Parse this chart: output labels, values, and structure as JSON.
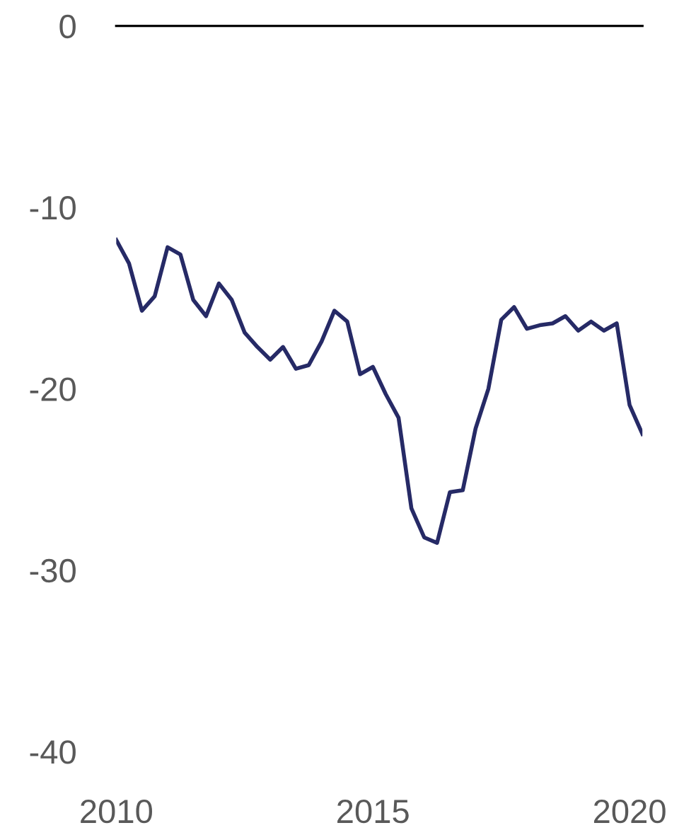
{
  "chart_data": {
    "type": "line",
    "x": [
      2010,
      2010.25,
      2010.5,
      2010.75,
      2011,
      2011.25,
      2011.5,
      2011.75,
      2012,
      2012.25,
      2012.5,
      2012.75,
      2013,
      2013.25,
      2013.5,
      2013.75,
      2014,
      2014.25,
      2014.5,
      2014.75,
      2015,
      2015.25,
      2015.5,
      2015.75,
      2016,
      2016.25,
      2016.5,
      2016.75,
      2017,
      2017.25,
      2017.5,
      2017.75,
      2018,
      2018.25,
      2018.5,
      2018.75,
      2019,
      2019.25,
      2019.5,
      2019.75,
      2020,
      2020.25
    ],
    "series": [
      {
        "color": "#262a66",
        "values": [
          -11.8,
          -13.1,
          -15.7,
          -14.9,
          -12.2,
          -12.6,
          -15.1,
          -16.0,
          -14.2,
          -15.1,
          -16.9,
          -17.7,
          -18.4,
          -17.7,
          -18.9,
          -18.7,
          -17.4,
          -15.7,
          -16.3,
          -19.2,
          -18.8,
          -20.3,
          -21.6,
          -26.6,
          -28.2,
          -28.5,
          -25.7,
          -25.6,
          -22.2,
          -20.0,
          -16.2,
          -15.5,
          -16.7,
          -16.5,
          -16.4,
          -16.0,
          -16.8,
          -16.3,
          -16.8,
          -16.4,
          -20.9,
          -22.5
        ]
      }
    ],
    "xlim": [
      2010,
      2020.25
    ],
    "xticks": [
      2010,
      2015,
      2020
    ],
    "ylim": [
      -40,
      0
    ],
    "yticks": [
      0,
      -10,
      -20,
      -30,
      -40
    ],
    "ref_lines": [
      {
        "axis": "y",
        "value": 0,
        "color": "#000000"
      }
    ],
    "grid": false,
    "legend": false,
    "marker": "none",
    "line_style": "solid"
  }
}
